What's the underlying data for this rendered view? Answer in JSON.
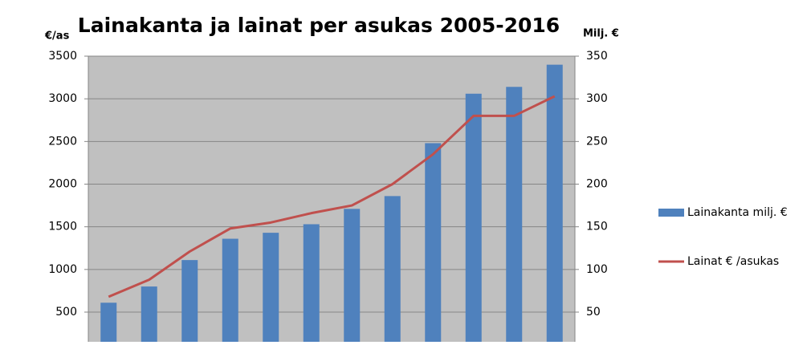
{
  "chart_data": {
    "type": "bar",
    "title": "Lainakanta ja lainat per asukas 2005-2016",
    "y_label": "€/as",
    "y2_label": "Milj. €",
    "categories": [
      null,
      null,
      null,
      null,
      null,
      null,
      null,
      null,
      null,
      null,
      null,
      null
    ],
    "series": [
      {
        "name": "Lainakanta milj. €",
        "type": "bar",
        "axis": "y2",
        "color": "#4f81bd",
        "values": [
          61,
          80,
          111,
          136,
          143,
          153,
          171,
          186,
          248,
          306,
          314,
          340
        ]
      },
      {
        "name": "Lainat € /asukas",
        "type": "line",
        "axis": "y",
        "color": "#c0504d",
        "values": [
          680,
          880,
          1210,
          1480,
          1550,
          1660,
          1750,
          2000,
          2350,
          2800,
          2800,
          3030
        ]
      }
    ],
    "ylim": [
      0,
      3500
    ],
    "yticks": [
      500,
      1000,
      1500,
      2000,
      2500,
      3000,
      3500
    ],
    "y2lim": [
      0,
      350
    ],
    "y2ticks": [
      50,
      100,
      150,
      200,
      250,
      300,
      350
    ],
    "grid": true,
    "legend": "right",
    "plot_background": "#c0c0c0"
  }
}
